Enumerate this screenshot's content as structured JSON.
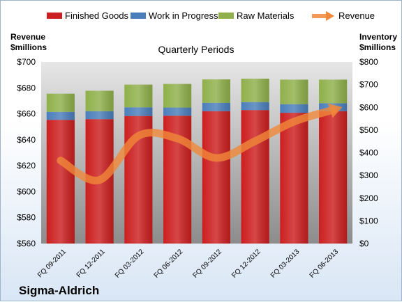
{
  "chart_data": {
    "type": "bar",
    "title": "Quarterly Periods",
    "footer": "Sigma-Aldrich",
    "left_axis": {
      "label_line1": "Revenue",
      "label_line2": "$millions",
      "range": [
        560,
        700
      ],
      "ticks": [
        "$560",
        "$580",
        "$600",
        "$620",
        "$640",
        "$660",
        "$680",
        "$700"
      ]
    },
    "right_axis": {
      "label_line1": "Inventory",
      "label_line2": "$millions",
      "range": [
        0,
        800
      ],
      "ticks": [
        "$0",
        "$100",
        "$200",
        "$300",
        "$400",
        "$500",
        "$600",
        "$700",
        "$800"
      ]
    },
    "categories": [
      "FQ 09-2011",
      "FQ 12-2011",
      "FQ 03-2012",
      "FQ 06-2012",
      "FQ 09-2012",
      "FQ 12-2012",
      "FQ 03-2013",
      "FQ 06-2013"
    ],
    "stack_series": [
      {
        "name": "Finished Goods",
        "color": "#cc1f1f",
        "values": [
          545,
          548,
          562,
          563,
          583,
          588,
          576,
          583
        ]
      },
      {
        "name": "Work in Progress",
        "color": "#4a7ebb",
        "values": [
          35,
          35,
          38,
          36,
          37,
          35,
          38,
          35
        ]
      },
      {
        "name": "Raw Materials",
        "color": "#8fb04a",
        "values": [
          80,
          90,
          100,
          104,
          103,
          103,
          108,
          104
        ]
      }
    ],
    "line_series": {
      "name": "Revenue",
      "color": "#f0883a",
      "values": [
        624,
        609,
        643,
        641,
        626,
        639,
        654,
        663
      ]
    },
    "legend_position": "top",
    "grid": false
  }
}
